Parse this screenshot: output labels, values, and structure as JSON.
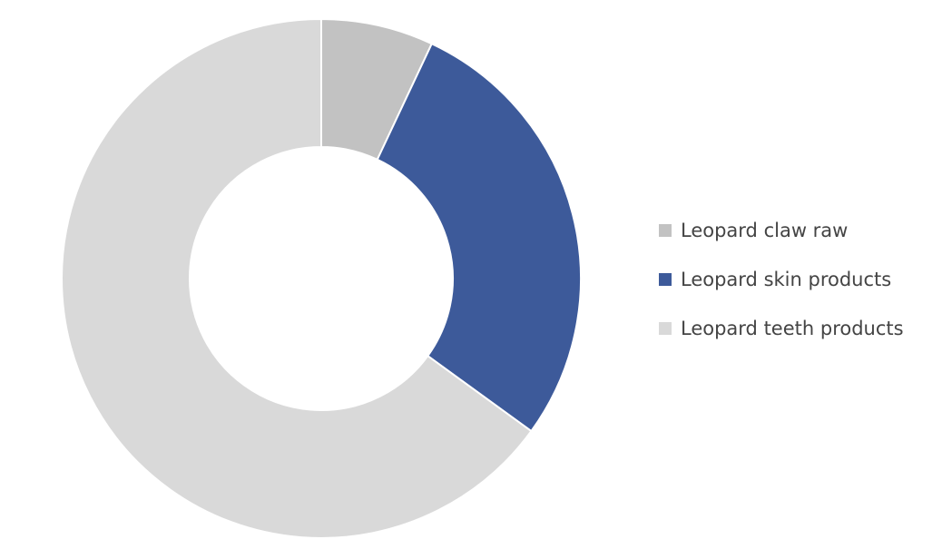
{
  "chart_data": {
    "type": "pie",
    "variant": "donut",
    "title": "",
    "legend_position": "right",
    "slices": [
      {
        "label": "Leopard claw raw",
        "value": 7,
        "color": "#c2c2c2"
      },
      {
        "label": "Leopard skin products",
        "value": 28,
        "color": "#3d5a9a"
      },
      {
        "label": "Leopard teeth products",
        "value": 65,
        "color": "#d9d9d9"
      }
    ]
  }
}
